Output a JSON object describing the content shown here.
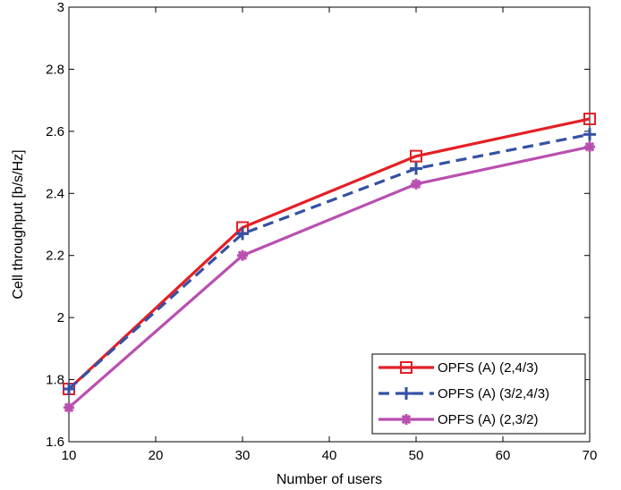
{
  "chart_data": {
    "type": "line",
    "title": "",
    "xlabel": "Number of users",
    "ylabel": "Cell throughput [b/s/Hz]",
    "xlim": [
      10,
      70
    ],
    "ylim": [
      1.6,
      3.0
    ],
    "xticks": [
      10,
      20,
      30,
      40,
      50,
      60,
      70
    ],
    "yticks": [
      1.6,
      1.8,
      2.0,
      2.2,
      2.4,
      2.6,
      2.8,
      3.0
    ],
    "xtick_labels": [
      "10",
      "20",
      "30",
      "40",
      "50",
      "60",
      "70"
    ],
    "ytick_labels": [
      "1.6",
      "1.8",
      "2",
      "2.2",
      "2.4",
      "2.6",
      "2.8",
      "3"
    ],
    "grid": false,
    "legend_position": "bottom-right",
    "x": [
      10,
      30,
      50,
      70
    ],
    "series": [
      {
        "name": "OPFS (A) (2,4/3)",
        "values": [
          1.77,
          2.29,
          2.52,
          2.64
        ],
        "color": "#e41f26",
        "dash": "solid",
        "marker": "square"
      },
      {
        "name": "OPFS (A) (3/2,4/3)",
        "values": [
          1.77,
          2.27,
          2.48,
          2.59
        ],
        "color": "#3451a4",
        "dash": "dashed",
        "marker": "plus"
      },
      {
        "name": "OPFS (A) (2,3/2)",
        "values": [
          1.71,
          2.2,
          2.43,
          2.55
        ],
        "color": "#b94fb1",
        "dash": "solid",
        "marker": "asterisk"
      }
    ]
  }
}
